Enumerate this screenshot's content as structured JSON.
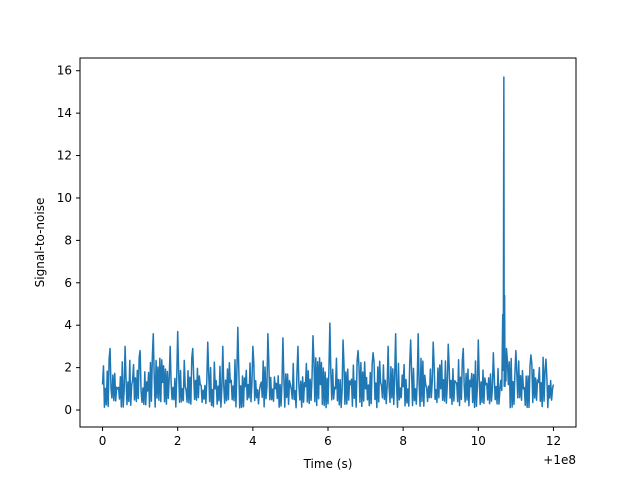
{
  "chart_data": {
    "type": "line",
    "title": "",
    "xlabel": "Time (s)",
    "ylabel": "Signal-to-noise",
    "x_offset_label": "+1e8",
    "xlim": [
      -0.6,
      12.6
    ],
    "ylim": [
      -0.8,
      16.6
    ],
    "x_ticks": [
      0,
      2,
      4,
      6,
      8,
      10,
      12
    ],
    "y_ticks": [
      0,
      2,
      4,
      6,
      8,
      10,
      12,
      14,
      16
    ],
    "grid": false,
    "legend": "none",
    "series": [
      {
        "color": "#1f77b4",
        "x": [
          0,
          0.2,
          0.4,
          0.6,
          0.8,
          1.0,
          1.2,
          1.35,
          1.6,
          1.8,
          2.0,
          2.2,
          2.4,
          2.6,
          2.8,
          3.0,
          3.2,
          3.4,
          3.6,
          3.8,
          4.0,
          4.2,
          4.4,
          4.6,
          4.8,
          5.0,
          5.2,
          5.4,
          5.6,
          5.8,
          6.05,
          6.2,
          6.4,
          6.6,
          6.8,
          7.0,
          7.2,
          7.4,
          7.6,
          7.8,
          8.0,
          8.2,
          8.4,
          8.6,
          8.8,
          9.0,
          9.2,
          9.4,
          9.6,
          9.8,
          10.0,
          10.2,
          10.4,
          10.6,
          10.65,
          10.68,
          10.7,
          10.72,
          10.75,
          10.8,
          11.0,
          11.2,
          11.4,
          11.6,
          11.8,
          12.0
        ],
        "y": [
          1.2,
          2.9,
          1.0,
          3.0,
          1.4,
          2.8,
          0.9,
          3.6,
          1.3,
          3.0,
          3.7,
          1.1,
          2.9,
          1.2,
          3.2,
          1.0,
          3.0,
          1.3,
          3.9,
          1.1,
          3.0,
          1.2,
          3.6,
          1.0,
          3.4,
          1.2,
          3.0,
          1.1,
          3.5,
          1.2,
          4.1,
          1.0,
          3.3,
          1.2,
          2.8,
          1.0,
          2.7,
          1.3,
          3.0,
          3.6,
          1.1,
          3.3,
          3.6,
          1.2,
          3.2,
          1.0,
          3.1,
          1.3,
          2.9,
          1.1,
          3.3,
          1.2,
          2.7,
          1.4,
          4.5,
          15.7,
          5.4,
          2.0,
          2.9,
          1.2,
          2.8,
          1.0,
          2.6,
          1.3,
          2.4,
          1.2
        ]
      }
    ]
  }
}
